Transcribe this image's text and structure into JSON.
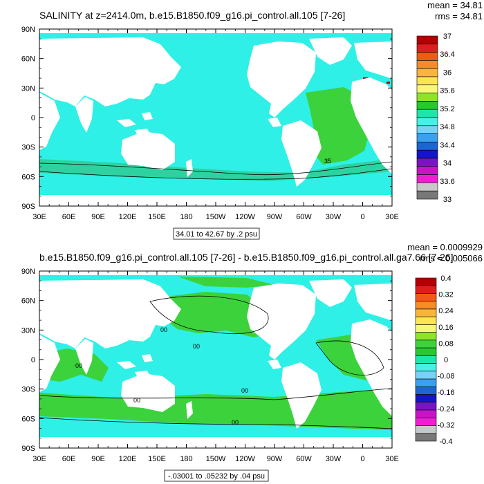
{
  "panels": [
    {
      "title": "SALINITY at z=2414.0m, b.e15.B1850.f09_g16.pi_control.all.105 [7-26]",
      "mean_label": "mean = 34.81",
      "rms_label": "rms = 34.81",
      "range_label": "34.01 to 42.67 by .2 psu",
      "contour_labels": [
        "35"
      ],
      "colorbar": {
        "labels": [
          "37",
          "36.4",
          "36",
          "35.6",
          "35.2",
          "34.8",
          "34.4",
          "34",
          "33.6",
          "33"
        ],
        "colors": [
          "#b40000",
          "#dc1e1e",
          "#f05a14",
          "#f58c28",
          "#f8b43c",
          "#fbe650",
          "#f8f878",
          "#8ce628",
          "#28c832",
          "#1ee6aa",
          "#46f0e6",
          "#78d2f5",
          "#3ca0f0",
          "#1e64d2",
          "#1414c8",
          "#7814c8",
          "#c814c8",
          "#f01ed2",
          "#c8c8c8",
          "#787878"
        ]
      },
      "ocean_color": "#2ef0e6",
      "zones": [
        {
          "name": "atlantic",
          "color": "#3cd23c"
        },
        {
          "name": "southern-band",
          "color": "#2ed2a0"
        },
        {
          "name": "med-red",
          "color": "#b40000"
        }
      ]
    },
    {
      "title": "b.e15.B1850.f09_g16.pi_control.all.105 [7-26] - b.e15.B1850.f09_g16.pi_control.all.ga7.66 [7-26]",
      "mean_label": "mean = 0.0009929",
      "rms_label": "rms = 0.005066",
      "range_label": "-.03001 to .05232 by .04 psu",
      "contour_labels": [
        "00",
        "00",
        "00",
        "00",
        "00",
        "00"
      ],
      "colorbar": {
        "labels": [
          "0.4",
          "0.32",
          "0.24",
          "0.16",
          "0.08",
          "0",
          "-0.08",
          "-0.16",
          "-0.24",
          "-0.32",
          "-0.4"
        ],
        "colors": [
          "#b40000",
          "#dc1e1e",
          "#f05a14",
          "#f58c28",
          "#f8b43c",
          "#fbe650",
          "#f8f878",
          "#8ce628",
          "#3cd23c",
          "#28c832",
          "#1ee6aa",
          "#46f0e6",
          "#78d2f5",
          "#3ca0f0",
          "#1e64d2",
          "#1414c8",
          "#7814c8",
          "#c814c8",
          "#f01ed2",
          "#c8c8c8",
          "#787878"
        ]
      },
      "ocean_color": "#2ef0e6",
      "zones": [
        {
          "name": "positive-regions",
          "color": "#3cd23c"
        }
      ]
    }
  ],
  "chart_data": [
    {
      "type": "heatmap",
      "title": "SALINITY at z=2414.0m, b.e15.B1850.f09_g16.pi_control.all.105 [7-26]",
      "units": "psu",
      "x_ticks": [
        "30E",
        "60E",
        "90E",
        "120E",
        "150E",
        "180",
        "150W",
        "120W",
        "90W",
        "60W",
        "30W",
        "0",
        "30E"
      ],
      "y_ticks": [
        "90N",
        "60N",
        "30N",
        "0",
        "30S",
        "60S",
        "90S"
      ],
      "xlim": [
        30,
        390
      ],
      "ylim": [
        -90,
        90
      ],
      "min": 34.01,
      "max": 42.67,
      "interval": 0.2,
      "mean": 34.81,
      "rms": 34.81
    },
    {
      "type": "heatmap",
      "title": "b.e15.B1850.f09_g16.pi_control.all.105 [7-26] - b.e15.B1850.f09_g16.pi_control.all.ga7.66 [7-26]",
      "units": "psu",
      "x_ticks": [
        "30E",
        "60E",
        "90E",
        "120E",
        "150E",
        "180",
        "150W",
        "120W",
        "90W",
        "60W",
        "30W",
        "0",
        "30E"
      ],
      "y_ticks": [
        "90N",
        "60N",
        "30N",
        "0",
        "30S",
        "60S",
        "90S"
      ],
      "xlim": [
        30,
        390
      ],
      "ylim": [
        -90,
        90
      ],
      "min": -0.03001,
      "max": 0.05232,
      "interval": 0.04,
      "mean": 0.0009929,
      "rms": 0.005066
    }
  ]
}
